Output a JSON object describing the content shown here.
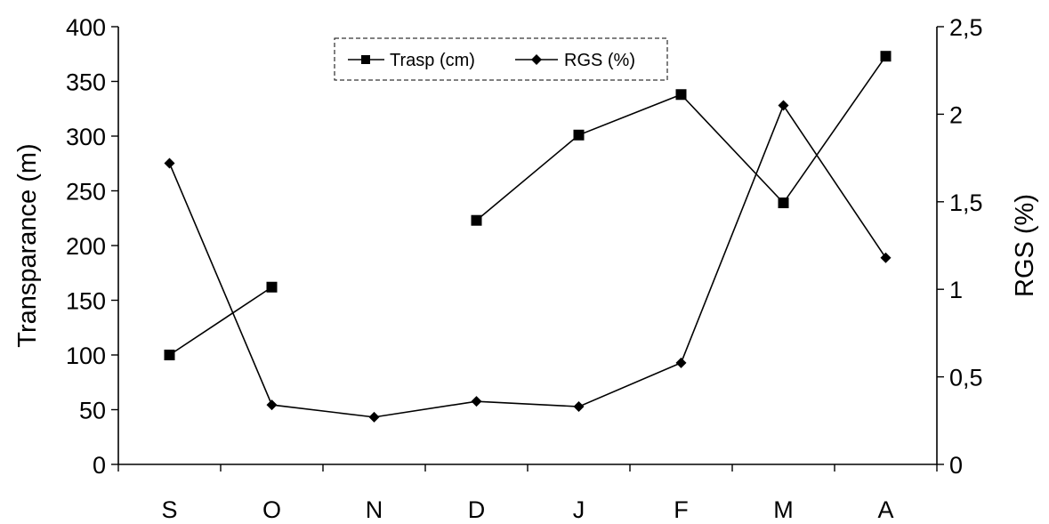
{
  "chart_data": {
    "type": "line",
    "categories": [
      "S",
      "O",
      "N",
      "D",
      "J",
      "F",
      "M",
      "A"
    ],
    "y_left": {
      "label": "Transparance (m)",
      "lim": [
        0,
        400
      ],
      "ticks": [
        "0",
        "50",
        "100",
        "150",
        "200",
        "250",
        "300",
        "350",
        "400"
      ]
    },
    "y_right": {
      "label": "RGS (%)",
      "lim": [
        0,
        2.5
      ],
      "ticks": [
        "0",
        "0,5",
        "1",
        "1,5",
        "2",
        "2,5"
      ]
    },
    "series": [
      {
        "name": "Trasp (cm)",
        "axis": "left",
        "marker": "square",
        "values": [
          100,
          162,
          null,
          223,
          301,
          338,
          239,
          373
        ]
      },
      {
        "name": "RGS (%)",
        "axis": "right",
        "marker": "diamond",
        "values": [
          1.72,
          0.34,
          0.27,
          0.36,
          0.33,
          0.58,
          2.05,
          1.18
        ]
      }
    ],
    "legend_position": "top-center",
    "grid": false,
    "line_color": "#000000",
    "background": "#ffffff"
  }
}
